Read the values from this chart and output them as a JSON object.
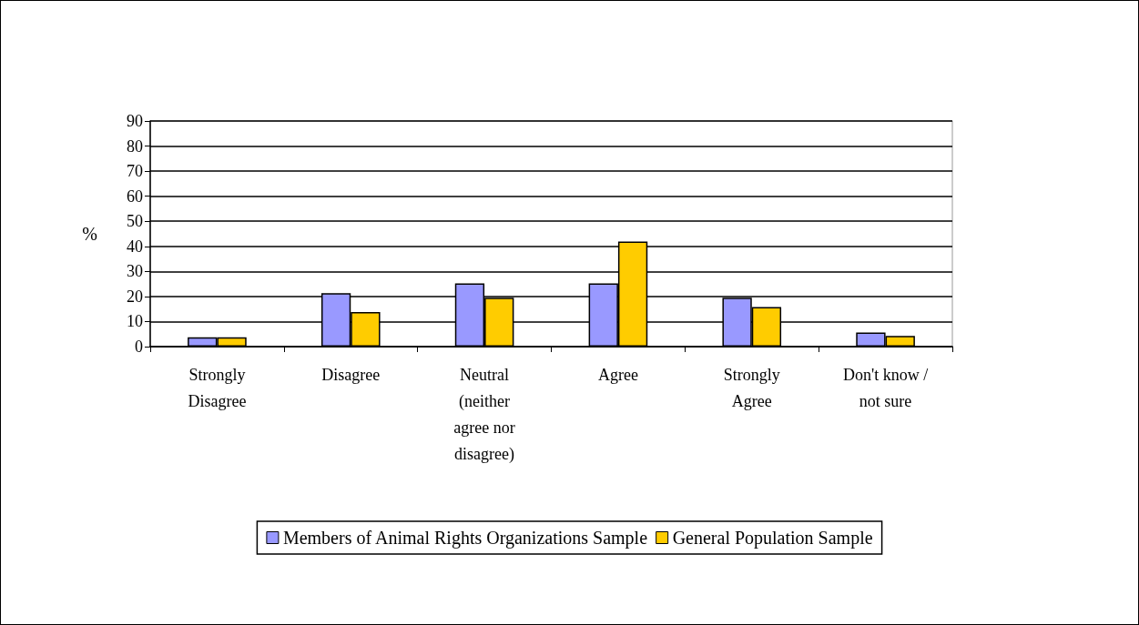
{
  "chart_data": {
    "type": "bar",
    "ylabel": "%",
    "categories": [
      "Strongly\nDisagree",
      "Disagree",
      "Neutral\n(neither\nagree nor\ndisagree)",
      "Agree",
      "Strongly\nAgree",
      "Don't know /\nnot sure"
    ],
    "series": [
      {
        "name": "Members of Animal Rights Organizations Sample",
        "color": "#9999ff",
        "values": [
          3.7,
          21.3,
          25.2,
          25.2,
          19.5,
          5.6
        ]
      },
      {
        "name": "General Population Sample",
        "color": "#ffcc00",
        "values": [
          3.7,
          13.8,
          19.5,
          41.9,
          15.8,
          4.3
        ]
      }
    ],
    "ylim": [
      0,
      90
    ],
    "yticks": [
      0,
      10,
      20,
      30,
      40,
      50,
      60,
      70,
      80,
      90
    ],
    "grid": "y",
    "legend": "bottom"
  }
}
